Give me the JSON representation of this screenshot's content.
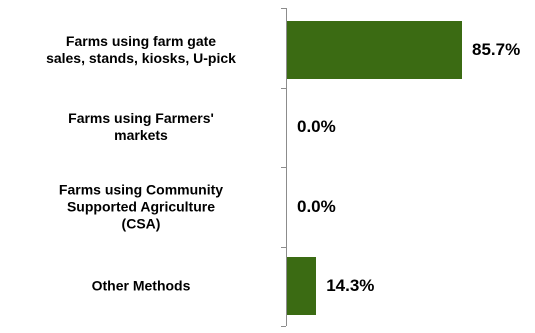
{
  "chart_data": {
    "type": "bar",
    "orientation": "horizontal",
    "categories": [
      "Farms using farm gate\nsales, stands, kiosks, U-pick",
      "Farms using Farmers'\nmarkets",
      "Farms using Community\nSupported Agriculture\n(CSA)",
      "Other Methods"
    ],
    "values": [
      85.7,
      0,
      0,
      14.3
    ],
    "value_labels": [
      "85.7%",
      "0.0%",
      "0.0%",
      "14.3%"
    ],
    "color": "#3b6b13"
  }
}
